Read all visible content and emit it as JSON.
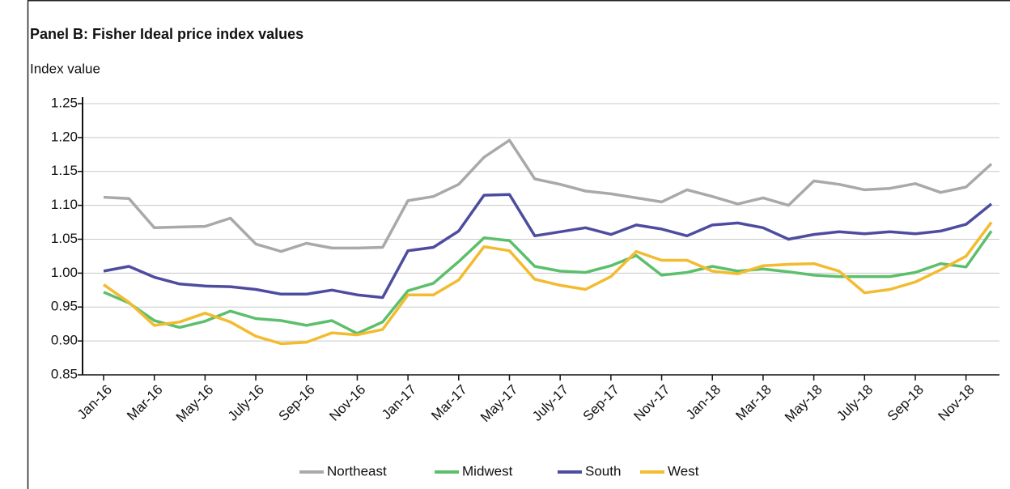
{
  "chart_data": {
    "type": "line",
    "title": "Panel B: Fisher Ideal price index values",
    "y_label": "Index value",
    "categories": [
      "Jan-16",
      null,
      "Mar-16",
      null,
      "May-16",
      null,
      "July-16",
      null,
      "Sep-16",
      null,
      "Nov-16",
      null,
      "Jan-17",
      null,
      "Mar-17",
      null,
      "May-17",
      null,
      "July-17",
      null,
      "Sep-17",
      null,
      "Nov-17",
      null,
      "Jan-18",
      null,
      "Mar-18",
      null,
      "May-18",
      null,
      "July-18",
      null,
      "Sep-18",
      null,
      "Nov-18",
      null
    ],
    "series": [
      {
        "name": "Northeast",
        "color": "#a9a9a9",
        "values": [
          1.112,
          1.11,
          1.067,
          1.068,
          1.069,
          1.081,
          1.043,
          1.032,
          1.044,
          1.037,
          1.037,
          1.038,
          1.107,
          1.113,
          1.131,
          1.171,
          1.196,
          1.139,
          1.131,
          1.121,
          1.117,
          1.111,
          1.105,
          1.123,
          1.113,
          1.102,
          1.111,
          1.1,
          1.136,
          1.131,
          1.123,
          1.125,
          1.132,
          1.119,
          1.127,
          1.161
        ]
      },
      {
        "name": "Midwest",
        "color": "#5cbf6b",
        "values": [
          0.972,
          0.956,
          0.93,
          0.92,
          0.929,
          0.944,
          0.933,
          0.93,
          0.923,
          0.93,
          0.911,
          0.928,
          0.974,
          0.985,
          1.017,
          1.052,
          1.048,
          1.01,
          1.003,
          1.001,
          1.011,
          1.026,
          0.997,
          1.001,
          1.01,
          1.003,
          1.006,
          1.002,
          0.997,
          0.995,
          0.995,
          0.995,
          1.001,
          1.014,
          1.009,
          1.062
        ]
      },
      {
        "name": "South",
        "color": "#4d4c9f",
        "values": [
          1.003,
          1.01,
          0.994,
          0.984,
          0.981,
          0.98,
          0.976,
          0.969,
          0.969,
          0.975,
          0.968,
          0.964,
          1.033,
          1.038,
          1.062,
          1.115,
          1.116,
          1.055,
          1.061,
          1.067,
          1.057,
          1.071,
          1.065,
          1.055,
          1.071,
          1.074,
          1.067,
          1.05,
          1.057,
          1.061,
          1.058,
          1.061,
          1.058,
          1.062,
          1.072,
          1.102
        ]
      },
      {
        "name": "West",
        "color": "#f2bb30",
        "values": [
          0.983,
          0.957,
          0.923,
          0.928,
          0.941,
          0.928,
          0.907,
          0.896,
          0.898,
          0.912,
          0.909,
          0.917,
          0.968,
          0.968,
          0.99,
          1.039,
          1.033,
          0.991,
          0.982,
          0.976,
          0.995,
          1.032,
          1.019,
          1.019,
          1.003,
          0.999,
          1.011,
          1.013,
          1.014,
          1.003,
          0.971,
          0.976,
          0.987,
          1.005,
          1.025,
          1.075
        ]
      }
    ],
    "ylim": [
      0.85,
      1.25
    ],
    "yticks": [
      0.85,
      {
        "value": 0.9,
        "label": "0.90"
      },
      0.95,
      {
        "value": 1.0,
        "label": "1.00"
      },
      1.05,
      {
        "value": 1.1,
        "label": "1.10"
      },
      1.15,
      {
        "value": 1.2,
        "label": "1.20"
      },
      1.25
    ],
    "grid": true,
    "legend": "bottom"
  }
}
